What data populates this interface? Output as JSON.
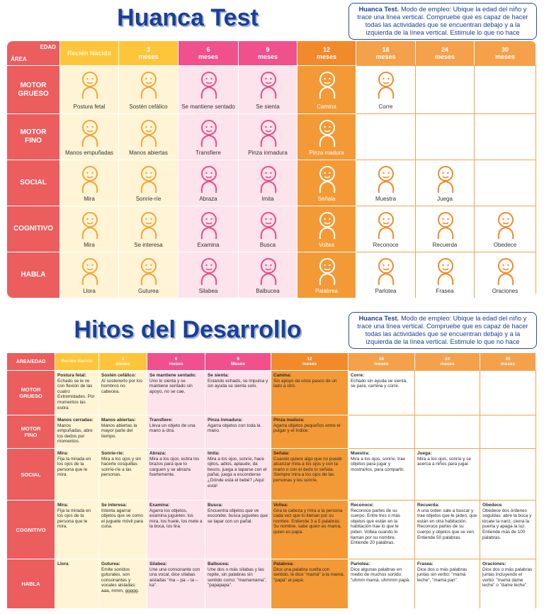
{
  "top": {
    "title": "Huanca Test",
    "note": {
      "bold": "Huanca Test.",
      "text": "Modo de empleo: Ubique la edad del niño y trace una línea vertical. Compruebe que es capaz de hacer todas las actividades que se encuentran debajo y a la izquierda de la línea vertical. Estimule lo que no hace"
    },
    "corner": {
      "top": "EDAD",
      "bottom": "ÁREA"
    },
    "ages": [
      [
        "Recién Nacido"
      ],
      [
        "3",
        "meses"
      ],
      [
        "6",
        "meses"
      ],
      [
        "9",
        "meses"
      ],
      [
        "12",
        "meses"
      ],
      [
        "18",
        "meses"
      ],
      [
        "24",
        "meses"
      ],
      [
        "30",
        "meses"
      ]
    ],
    "rows": [
      {
        "area": [
          "MOTOR",
          "GRUESO"
        ],
        "cells": [
          "Postura fetal",
          "Sostén cefálico",
          "Se mantiene sentado",
          "Se sienta",
          "Camina",
          "Corre",
          null,
          null
        ]
      },
      {
        "area": [
          "MOTOR",
          "FINO"
        ],
        "cells": [
          "Manos empuñadas",
          "Manos abiertas",
          "Transfiere",
          "Pinza inmadura",
          "Pinza madura",
          null,
          null,
          null
        ]
      },
      {
        "area": [
          "SOCIAL"
        ],
        "cells": [
          "Mira",
          "Sonríe-ríe",
          "Abraza",
          "Imita",
          "Señala",
          "Muestra",
          "Juega",
          null
        ]
      },
      {
        "area": [
          "COGNITIVO"
        ],
        "cells": [
          "Mira",
          "Se interesa",
          "Examina",
          "Busca",
          "Voltea",
          "Reconoce",
          "Recuerda",
          "Obedece"
        ]
      },
      {
        "area": [
          "HABLA"
        ],
        "cells": [
          "Llora",
          "Guturea",
          "Silabea",
          "Balbucea",
          "Palabrea",
          "Parlotea",
          "Frasea",
          "Oraciones"
        ]
      }
    ]
  },
  "bottom": {
    "title": "Hitos del Desarrollo",
    "note": {
      "bold": "Huanca Test.",
      "text": "Modo de empleo: Ubique la edad del niño y trace una línea vertical. Compruebe que es capaz de hacer todas las actividades que se encuentran debajo y a la izquierda de la línea vertical. Estimule lo que no hace"
    },
    "corner": "AREA/EDAD",
    "ages": [
      [
        "Recién Nacido"
      ],
      [
        "3",
        "meses"
      ],
      [
        "6",
        "meses"
      ],
      [
        "9",
        "Meses"
      ],
      [
        "12",
        "meses"
      ],
      [
        "18",
        "meses"
      ],
      [
        "24",
        "meses"
      ],
      [
        "30",
        "meses"
      ]
    ],
    "rows": [
      {
        "area": [
          "MOTOR",
          "GRUESO"
        ],
        "cells": [
          {
            "title": "Postura fetal:",
            "text": "Echado se le ve con flexión de las cuatro Extremidades. Por momentos las estira"
          },
          {
            "title": "Sostén cefálico:",
            "text": "Al sostenerlo por los hombros no cabecea."
          },
          {
            "title": "Se mantiene sentado:",
            "text": "Uno lo sienta y se mantiene sentado sin apoyo, no se cae."
          },
          {
            "title": "Se sienta:",
            "text": "Estando echado, se impulsa y sin ayuda se sienta solo."
          },
          {
            "title": "Camina:",
            "text": "Sin apoyo da unos pasos de un lado a otro."
          },
          {
            "title": "Corre:",
            "text": "Echado sin ayuda se sienta, se para, camina y corre."
          },
          null,
          null
        ]
      },
      {
        "area": [
          "MOTOR",
          "FINO"
        ],
        "cells": [
          {
            "title": "Manos cerradas:",
            "text": "Manos empuñadas, abre los dedos por momentos."
          },
          {
            "title": "Manos abiertas:",
            "text": "Manos abiertas la mayor parte del tiempo."
          },
          {
            "title": "Transfiere:",
            "text": "Lleva un objeto de una mano a otra."
          },
          {
            "title": "Pinza inmadura:",
            "text": "Agarra objetos con toda la mano."
          },
          {
            "title": "Pinza madura:",
            "text": "Agarra objetos pequeños entre el pulgar y el índice."
          },
          null,
          null,
          null
        ]
      },
      {
        "area": [
          "SOCIAL"
        ],
        "cells": [
          {
            "title": "Mira:",
            "text": "Fija la mirada en los ojos de la persona que le mira."
          },
          {
            "title": "Sonríe-ríe:",
            "text": "Mira a los ojos y sin hacerle cosquillas sonríe-ríe a las personas."
          },
          {
            "title": "Abraza:",
            "text": "Mira a los ojos, estira los brazos para que lo carguen y se abraza fuertemente."
          },
          {
            "title": "Imita:",
            "text": "Mira a los ojos, sonríe, hace ojitos, adiós, aplaude, da besos, juega a taparse con el pañal, juega a esconderse ¿Dónde está el bebé? ¡Aquí está!"
          },
          {
            "title": "Señala:",
            "text": "Cuando quiere algo que no puede alcanzar mira a los ojos y con la mano o con el dedo lo señala. Siempre mira a los ojos de las personas y les sonríe."
          },
          {
            "title": "Muestra:",
            "text": "Mira a los ojos, sonríe, trae objetos para jugar y mostrarlos, para compartir."
          },
          {
            "title": "Juega:",
            "text": "Mira a los ojos, sonríe y se acerca a niños para jugar."
          },
          null
        ]
      },
      {
        "area": [
          "COGNITIVO"
        ],
        "cells": [
          {
            "title": "Mira:",
            "text": "Fija la mirada en los ojos de la persona que le mira."
          },
          {
            "title": "Se interesa:",
            "text": "Intenta agarrar objetos que ve como el juguete móvil para cuna."
          },
          {
            "title": "Examina:",
            "text": "Agarra los objetos, examina juguetes: los mira, los huele, los mete a la boca, los tira."
          },
          {
            "title": "Busca:",
            "text": "Encuentra objetos que ve esconder, busca juguetes que se tapar con un pañal."
          },
          {
            "title": "Voltea:",
            "text": "Gira la cabeza y mira a la persona cada vez que lo llaman por su nombre. Entiende 3 a 5 palabras: Su nombre, sabe quien es mamá, quien es papá."
          },
          {
            "title": "Reconoce:",
            "text": "Reconoce partes de su cuerpo. Entre tres o más objetos que están en la habitación trae lo que le piden. Voltea cuando lo llaman por su nombre. Entiende 20 palabras."
          },
          {
            "title": "Recuerda:",
            "text": "A una orden sale a buscar y trae objetos que le piden, que están en otra habitación. Reconoce partes de su cuerpo y objetos que se ven. Entiende 50 palabras."
          },
          {
            "title": "Obedece.",
            "text": "Obedece dos órdenes seguidas: abre la boca y tócate la nariz, cierra la puerta y apaga la luz. Entiende más de 100 palabras."
          }
        ]
      },
      {
        "area": [
          "HABLA"
        ],
        "cells": [
          {
            "title": "Llora"
          },
          {
            "title": "Guturea:",
            "text": "Emite sonidos guturales, son consonantes y vocales aisladas: aaa, mmm, ggggg."
          },
          {
            "title": "Silabea:",
            "text": "Une una consonante con una vocal, dice sílabas aisladas \"ma – pa – ta – ka\"."
          },
          {
            "title": "Balbucea:",
            "text": "Une dos o más sílabas y las repite, sin palabras sin sentido como: \"mamamama\", \"papapapa\"."
          },
          {
            "title": "Palabrea:",
            "text": "Dice una palabra suelta con sentido, le dice \"mamá\" a la mamá, \"papá\" al papá."
          },
          {
            "title": "Parlotea:",
            "text": "Dice algunas palabras en medio de muchos sonido: \"uhmm mamá, uhmmm papá."
          },
          {
            "title": "Frasea:",
            "text": "Dice dos o más palabras juntas sin verbo: \"mamá leche\", \"mamá pan\"."
          },
          {
            "title": "Oraciones:",
            "text": "Dice dos o más palabras juntas incluyendo el verbo: \"mamá dame leche\" o \"dame leche\"."
          }
        ]
      }
    ]
  }
}
